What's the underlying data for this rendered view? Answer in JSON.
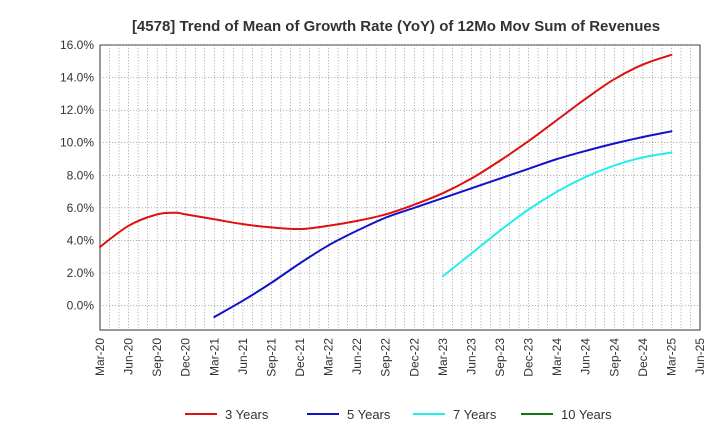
{
  "chart_data": {
    "type": "line",
    "title": "[4578]  Trend of Mean of Growth Rate (YoY) of 12Mo Mov Sum of Revenues",
    "xlabel": "",
    "ylabel": "",
    "ylim": [
      -1.5,
      16.0
    ],
    "y_ticks": [
      0.0,
      2.0,
      4.0,
      6.0,
      8.0,
      10.0,
      12.0,
      14.0,
      16.0
    ],
    "y_tick_labels": [
      "0.0%",
      "2.0%",
      "4.0%",
      "6.0%",
      "8.0%",
      "10.0%",
      "12.0%",
      "14.0%",
      "16.0%"
    ],
    "x_range_months": [
      0,
      63
    ],
    "x_ticks": [
      0,
      3,
      6,
      9,
      12,
      15,
      18,
      21,
      24,
      27,
      30,
      33,
      36,
      39,
      42,
      45,
      48,
      51,
      54,
      57,
      60,
      63
    ],
    "x_tick_labels": [
      "Mar-20",
      "Jun-20",
      "Sep-20",
      "Dec-20",
      "Mar-21",
      "Jun-21",
      "Sep-21",
      "Dec-21",
      "Mar-22",
      "Jun-22",
      "Sep-22",
      "Dec-22",
      "Mar-23",
      "Jun-23",
      "Sep-23",
      "Dec-23",
      "Mar-24",
      "Jun-24",
      "Sep-24",
      "Dec-24",
      "Mar-25",
      "Jun-25"
    ],
    "grid": true,
    "legend_position": "bottom",
    "series": [
      {
        "name": "3 Years",
        "color": "#dd1111",
        "x": [
          0,
          3,
          6,
          8,
          9,
          12,
          15,
          18,
          21,
          24,
          27,
          30,
          33,
          36,
          39,
          42,
          45,
          48,
          51,
          54,
          57,
          60
        ],
        "values": [
          3.6,
          4.9,
          5.6,
          5.7,
          5.6,
          5.3,
          5.0,
          4.8,
          4.7,
          4.9,
          5.2,
          5.6,
          6.2,
          6.9,
          7.8,
          8.9,
          10.1,
          11.4,
          12.7,
          13.9,
          14.8,
          15.4
        ]
      },
      {
        "name": "5 Years",
        "color": "#1111cc",
        "x": [
          12,
          15,
          18,
          21,
          24,
          27,
          30,
          33,
          36,
          39,
          42,
          45,
          48,
          51,
          54,
          57,
          60
        ],
        "values": [
          -0.7,
          0.3,
          1.4,
          2.6,
          3.7,
          4.6,
          5.4,
          6.0,
          6.6,
          7.2,
          7.8,
          8.4,
          9.0,
          9.5,
          9.95,
          10.35,
          10.7
        ]
      },
      {
        "name": "7 Years",
        "color": "#22eeee",
        "x": [
          36,
          39,
          42,
          45,
          48,
          51,
          54,
          57,
          60
        ],
        "values": [
          1.8,
          3.2,
          4.6,
          5.9,
          7.0,
          7.9,
          8.6,
          9.1,
          9.4
        ]
      },
      {
        "name": "10 Years",
        "color": "#117711",
        "x": [],
        "values": []
      }
    ]
  }
}
